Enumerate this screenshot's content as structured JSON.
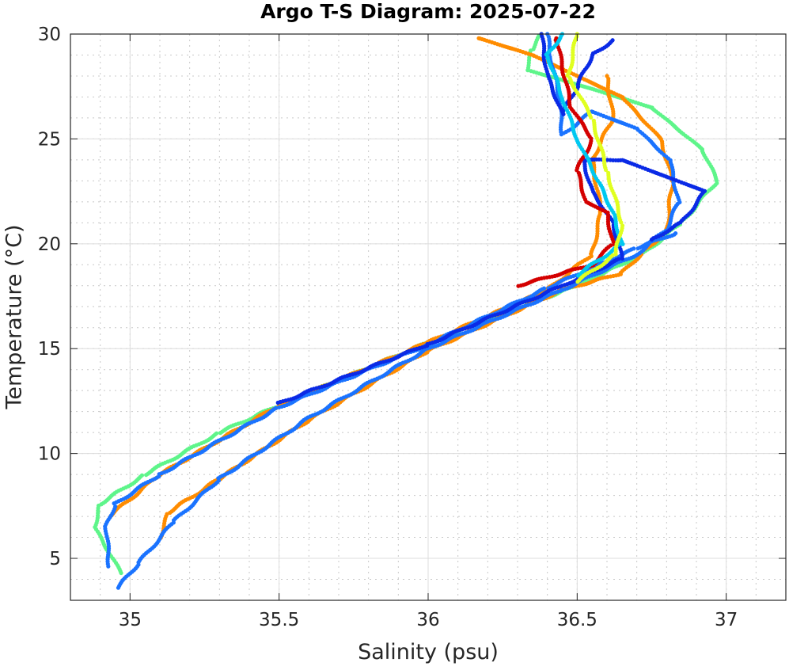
{
  "chart_data": {
    "type": "scatter",
    "title": "Argo T-S Diagram: 2025-07-22",
    "xlabel": "Salinity (psu)",
    "ylabel": "Temperature (°C)",
    "xlim": [
      34.8,
      37.2
    ],
    "ylim": [
      3,
      30
    ],
    "xticks": [
      35,
      35.5,
      36,
      36.5,
      37
    ],
    "xtick_labels": [
      "35",
      "35.5",
      "36",
      "36.5",
      "37"
    ],
    "yticks": [
      5,
      10,
      15,
      20,
      25,
      30
    ],
    "ytick_labels": [
      "5",
      "10",
      "15",
      "20",
      "25",
      "30"
    ],
    "grid": "major solid, minor dotted",
    "series": [
      {
        "name": "profile-green",
        "color": "#5ef58a",
        "points": [
          [
            34.97,
            4.3
          ],
          [
            34.88,
            6.5
          ],
          [
            34.9,
            7.6
          ],
          [
            35.05,
            9
          ],
          [
            35.3,
            11
          ],
          [
            35.5,
            12.3
          ],
          [
            36,
            15.3
          ],
          [
            36.5,
            18
          ],
          [
            36.72,
            19.5
          ],
          [
            36.85,
            21
          ],
          [
            36.97,
            23
          ],
          [
            36.92,
            24.5
          ],
          [
            36.75,
            26.5
          ],
          [
            36.5,
            27.6
          ],
          [
            36.33,
            28.3
          ],
          [
            36.35,
            29.3
          ],
          [
            36.38,
            30
          ]
        ]
      },
      {
        "name": "profile-orange",
        "color": "#ff8c00",
        "points": [
          [
            35.1,
            6
          ],
          [
            35.13,
            7.2
          ],
          [
            35.3,
            8.8
          ],
          [
            35.6,
            11.6
          ],
          [
            36,
            14.9
          ],
          [
            36.45,
            17.8
          ],
          [
            36.65,
            18.6
          ],
          [
            36.72,
            19.6
          ],
          [
            36.8,
            20.6
          ],
          [
            36.82,
            23
          ],
          [
            36.78,
            25
          ],
          [
            36.65,
            27
          ],
          [
            36.5,
            28
          ],
          [
            36.35,
            29
          ],
          [
            36.17,
            29.8
          ]
        ]
      },
      {
        "name": "profile-orange-2",
        "color": "#ff8c00",
        "points": [
          [
            34.93,
            7
          ],
          [
            35.1,
            9
          ],
          [
            35.5,
            12.3
          ],
          [
            36,
            15.3
          ],
          [
            36.4,
            17.8
          ],
          [
            36.55,
            19.5
          ],
          [
            36.58,
            21.5
          ],
          [
            36.55,
            24
          ],
          [
            36.62,
            26
          ],
          [
            36.6,
            28
          ]
        ]
      },
      {
        "name": "profile-blue",
        "color": "#1a73ff",
        "points": [
          [
            34.96,
            3.6
          ],
          [
            35.03,
            4.8
          ],
          [
            35.15,
            6.8
          ],
          [
            35.3,
            8.8
          ],
          [
            35.6,
            11.7
          ],
          [
            36,
            15
          ],
          [
            36.45,
            17.8
          ],
          [
            36.7,
            19.5
          ],
          [
            36.8,
            20.7
          ],
          [
            36.84,
            22
          ],
          [
            36.81,
            24
          ],
          [
            36.7,
            25.5
          ],
          [
            36.55,
            26.3
          ],
          [
            36.45,
            25.2
          ],
          [
            36.44,
            27
          ],
          [
            36.41,
            29
          ],
          [
            36.4,
            30
          ]
        ]
      },
      {
        "name": "profile-blue-2",
        "color": "#1a73ff",
        "points": [
          [
            34.93,
            4.6
          ],
          [
            34.92,
            6.5
          ],
          [
            34.95,
            7.6
          ],
          [
            35.1,
            9
          ],
          [
            35.5,
            12.2
          ],
          [
            36,
            15.2
          ],
          [
            36.4,
            17.9
          ],
          [
            36.7,
            19.8
          ],
          [
            36.83,
            20.5
          ]
        ]
      },
      {
        "name": "profile-dark-blue",
        "color": "#0a2ae6",
        "points": [
          [
            35.5,
            12.4
          ],
          [
            36,
            15.2
          ],
          [
            36.45,
            18
          ],
          [
            36.65,
            19.3
          ],
          [
            36.62,
            21
          ],
          [
            36.55,
            22.5
          ],
          [
            36.52,
            24
          ],
          [
            36.65,
            24
          ],
          [
            36.78,
            23.3
          ],
          [
            36.93,
            22.5
          ],
          [
            36.85,
            21
          ],
          [
            36.75,
            20.2
          ]
        ]
      },
      {
        "name": "profile-dark-blue-2",
        "color": "#0a2ae6",
        "points": [
          [
            36.62,
            29.7
          ],
          [
            36.55,
            29
          ],
          [
            36.5,
            27.5
          ],
          [
            36.45,
            26.2
          ],
          [
            36.4,
            28
          ],
          [
            36.38,
            30
          ]
        ]
      },
      {
        "name": "profile-red",
        "color": "#d40000",
        "points": [
          [
            36.3,
            18
          ],
          [
            36.55,
            19
          ],
          [
            36.62,
            20
          ],
          [
            36.6,
            21.5
          ],
          [
            36.53,
            22
          ],
          [
            36.5,
            23.5
          ],
          [
            36.55,
            25
          ],
          [
            36.48,
            26.5
          ],
          [
            36.43,
            29.8
          ]
        ]
      },
      {
        "name": "profile-cyan",
        "color": "#00c8f0",
        "points": [
          [
            36.5,
            18.5
          ],
          [
            36.65,
            20
          ],
          [
            36.62,
            21.5
          ],
          [
            36.57,
            23
          ],
          [
            36.5,
            25
          ],
          [
            36.45,
            27
          ],
          [
            36.4,
            29
          ],
          [
            36.45,
            30
          ]
        ]
      },
      {
        "name": "profile-yellow",
        "color": "#e0ff20",
        "points": [
          [
            36.5,
            18.2
          ],
          [
            36.63,
            19.5
          ],
          [
            36.65,
            21
          ],
          [
            36.6,
            23.5
          ],
          [
            36.55,
            26
          ],
          [
            36.47,
            28
          ],
          [
            36.5,
            30
          ]
        ]
      }
    ]
  }
}
